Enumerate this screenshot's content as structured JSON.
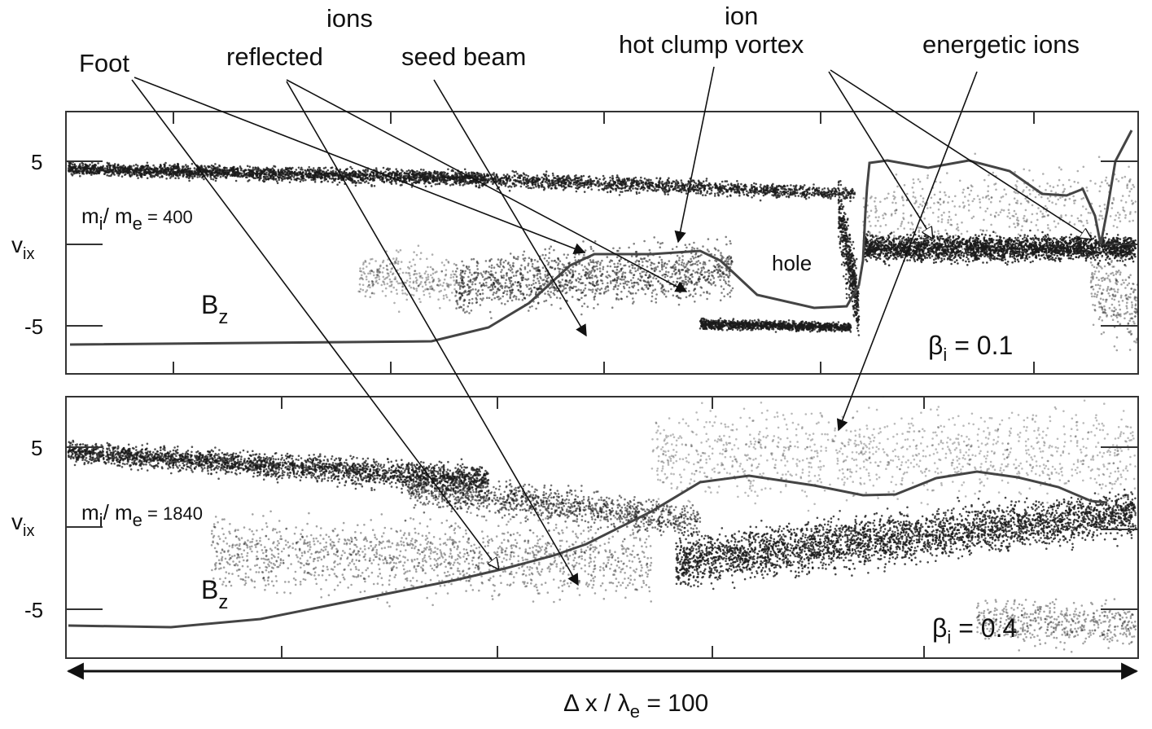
{
  "annotations": {
    "foot": "Foot",
    "ions": "ions",
    "reflected": "reflected",
    "seed_beam": "seed beam",
    "ion": "ion",
    "hot_clump_vortex": "hot clump vortex",
    "energetic_ions": "energetic ions",
    "hole": "hole"
  },
  "panels": [
    {
      "ytick_top": "5",
      "ytick_bottom": "-5",
      "ylabel_main": "v",
      "ylabel_sub": "ix",
      "mass_ratio_m": "m",
      "mass_ratio_i": "i",
      "mass_ratio_slash": "/ m",
      "mass_ratio_e": "e",
      "mass_ratio_value": " = 400",
      "bz_main": "B",
      "bz_sub": "z",
      "beta_symbol": "β",
      "beta_sub": "i",
      "beta_value": " = 0.1"
    },
    {
      "ytick_top": "5",
      "ytick_bottom": "-5",
      "ylabel_main": "v",
      "ylabel_sub": "ix",
      "mass_ratio_m": "m",
      "mass_ratio_i": "i",
      "mass_ratio_slash": "/ m",
      "mass_ratio_e": "e",
      "mass_ratio_value": " = 1840",
      "bz_main": "B",
      "bz_sub": "z",
      "beta_symbol": "β",
      "beta_sub": "i",
      "beta_value": " = 0.4"
    }
  ],
  "scale_bar": {
    "delta": "Δ x / ",
    "lambda": "λ",
    "lambda_sub": "e",
    "value": " = 100"
  },
  "colors": {
    "ink": "#111111",
    "particles": "#1a1a1a",
    "background": "#ffffff"
  }
}
